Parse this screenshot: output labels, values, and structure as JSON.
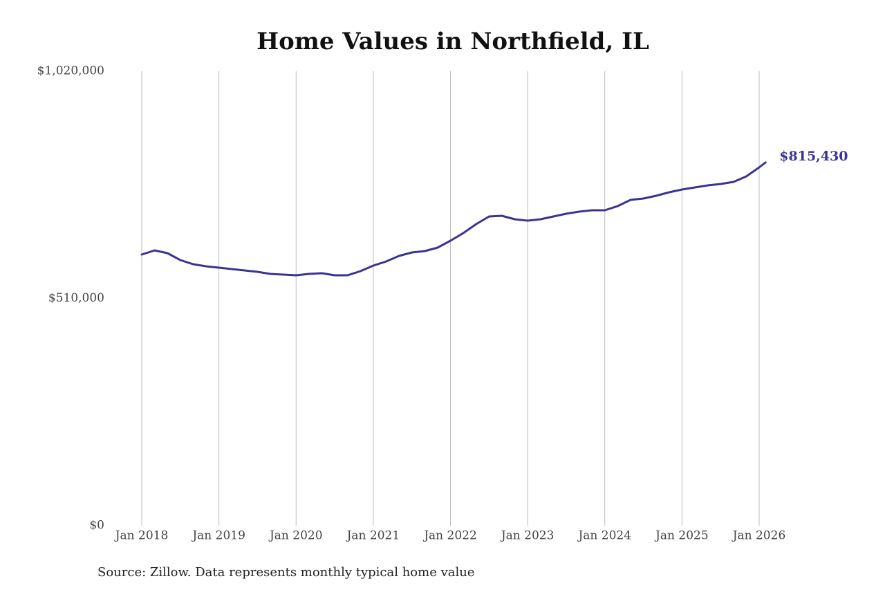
{
  "chart_data": {
    "type": "line",
    "title": "Home Values in Northfield, IL",
    "source": "Source: Zillow. Data represents monthly typical home value",
    "x": [
      "2018-01",
      "2018-03",
      "2018-05",
      "2018-07",
      "2018-09",
      "2018-11",
      "2019-01",
      "2019-03",
      "2019-05",
      "2019-07",
      "2019-09",
      "2019-11",
      "2020-01",
      "2020-03",
      "2020-05",
      "2020-07",
      "2020-09",
      "2020-11",
      "2021-01",
      "2021-03",
      "2021-05",
      "2021-07",
      "2021-09",
      "2021-11",
      "2022-01",
      "2022-03",
      "2022-05",
      "2022-07",
      "2022-09",
      "2022-11",
      "2023-01",
      "2023-03",
      "2023-05",
      "2023-07",
      "2023-09",
      "2023-11",
      "2024-01",
      "2024-03",
      "2024-05",
      "2024-07",
      "2024-09",
      "2024-11",
      "2025-01",
      "2025-03",
      "2025-05",
      "2025-07",
      "2025-09",
      "2025-11",
      "2026-01",
      "2026-02"
    ],
    "series": [
      {
        "color": "#3b3393",
        "values": [
          608600,
          617900,
          611700,
          596200,
          586800,
          582200,
          579100,
          576000,
          572900,
          569800,
          565100,
          563600,
          562000,
          565100,
          566700,
          562000,
          562000,
          571300,
          583700,
          593100,
          605500,
          613200,
          616300,
          624100,
          639600,
          656700,
          676900,
          694000,
          695500,
          687800,
          684700,
          687800,
          694000,
          700200,
          704800,
          707900,
          707900,
          717300,
          731200,
          734300,
          740500,
          748300,
          754500,
          759200,
          763800,
          766900,
          771600,
          784000,
          804200,
          815430
        ],
        "value_labels": [
          null,
          null,
          null,
          null,
          null,
          null,
          null,
          null,
          null,
          null,
          null,
          null,
          null,
          null,
          null,
          null,
          null,
          null,
          null,
          null,
          null,
          null,
          null,
          null,
          null,
          null,
          null,
          null,
          null,
          null,
          null,
          null,
          null,
          null,
          null,
          null,
          null,
          null,
          null,
          null,
          null,
          null,
          null,
          null,
          null,
          null,
          null,
          null,
          null,
          "$815,430"
        ]
      }
    ],
    "xlim": [
      "2017-08",
      "2026-06"
    ],
    "xticks": [
      {
        "value": "2018-01",
        "label": "Jan 2018"
      },
      {
        "value": "2019-01",
        "label": "Jan 2019"
      },
      {
        "value": "2020-01",
        "label": "Jan 2020"
      },
      {
        "value": "2021-01",
        "label": "Jan 2021"
      },
      {
        "value": "2022-01",
        "label": "Jan 2022"
      },
      {
        "value": "2023-01",
        "label": "Jan 2023"
      },
      {
        "value": "2024-01",
        "label": "Jan 2024"
      },
      {
        "value": "2025-01",
        "label": "Jan 2025"
      },
      {
        "value": "2026-01",
        "label": "Jan 2026"
      }
    ],
    "ylim": [
      0,
      1020000
    ],
    "yticks": [
      {
        "value": 0,
        "label": "$0"
      },
      {
        "value": 510000,
        "label": "$510,000"
      },
      {
        "value": 1020000,
        "label": "$1,020,000"
      }
    ],
    "grid": "x"
  }
}
